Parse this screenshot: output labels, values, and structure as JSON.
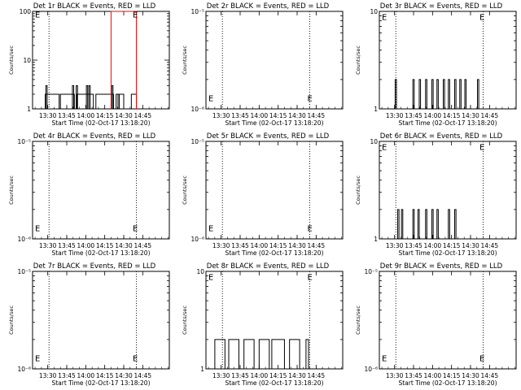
{
  "chart_data": [
    {
      "type": "line",
      "title": "Det 1r BLACK = Events, RED = LLD",
      "xlabel": "Start Time (02-Oct-17 13:18:20)",
      "ylabel": "Counts/sec",
      "yscale": "log",
      "xlim": [
        "13:18",
        "15:06"
      ],
      "ylim": [
        1,
        100
      ],
      "x_ticks": [
        "13:30",
        "13:45",
        "14:00",
        "14:15",
        "14:30",
        "14:45"
      ],
      "y_ticks": [
        "1",
        "10",
        "100"
      ],
      "vlines": [
        "13:31",
        "14:40"
      ],
      "marker": {
        "label": "E",
        "x": "14:39",
        "y": 88
      },
      "series": [
        {
          "name": "Events",
          "color": "#000000",
          "ranges": [
            [
              "13:28",
              "13:39",
              2
            ],
            [
              "13:40",
              "13:51",
              2
            ],
            [
              "13:53",
              "14:06",
              2
            ],
            [
              "14:08",
              "14:22",
              2
            ],
            [
              "14:24",
              "14:30",
              2
            ],
            [
              "14:36",
              "14:40",
              2
            ]
          ],
          "spikes": [
            [
              "13:29",
              3
            ],
            [
              "13:50",
              3
            ],
            [
              "13:53",
              3
            ],
            [
              "14:01",
              3
            ],
            [
              "14:03",
              3
            ],
            [
              "14:21",
              3
            ],
            [
              "14:26",
              2
            ]
          ]
        },
        {
          "name": "LLD",
          "color": "#ff0000",
          "ranges": [
            [
              "14:20",
              "14:40",
              100
            ]
          ],
          "spikes": []
        }
      ]
    },
    {
      "type": "line",
      "title": "Det 2r BLACK = Events, RED = LLD",
      "xlabel": "Start Time (02-Oct-17 13:18:20)",
      "ylabel": "Counts/sec",
      "yscale": "log",
      "xlim": [
        "13:18",
        "15:06"
      ],
      "ylim": [
        1e-06,
        1e-05
      ],
      "x_ticks": [
        "13:30",
        "13:45",
        "14:00",
        "14:15",
        "14:30",
        "14:45"
      ],
      "y_ticks": [
        "10⁻⁶",
        "10⁻⁵"
      ],
      "vlines": [
        "13:31",
        "14:40"
      ],
      "marker": {
        "label": "E",
        "x": "14:40",
        "y": 1.3e-06
      },
      "series": [
        {
          "name": "Events",
          "color": "#000000",
          "ranges": [],
          "spikes": []
        },
        {
          "name": "LLD",
          "color": "#ff0000",
          "ranges": [],
          "spikes": []
        }
      ]
    },
    {
      "type": "line",
      "title": "Det 3r BLACK = Events, RED = LLD",
      "xlabel": "Start Time (02-Oct-17 13:18:20)",
      "ylabel": "Counts/sec",
      "yscale": "log",
      "xlim": [
        "13:18",
        "15:06"
      ],
      "ylim": [
        1,
        10
      ],
      "x_ticks": [
        "13:30",
        "13:45",
        "14:00",
        "14:15",
        "14:30",
        "14:45"
      ],
      "y_ticks": [
        "1",
        "10"
      ],
      "vlines": [
        "13:31",
        "14:40"
      ],
      "marker": {
        "label": "E",
        "x": "14:39",
        "y": 8.8
      },
      "series": [
        {
          "name": "Events",
          "color": "#000000",
          "ranges": [],
          "spikes": [
            [
              "13:31",
              2
            ],
            [
              "13:45",
              2
            ],
            [
              "13:50",
              2
            ],
            [
              "13:55",
              2
            ],
            [
              "14:00",
              2
            ],
            [
              "14:04",
              2
            ],
            [
              "14:09",
              2
            ],
            [
              "14:13",
              2
            ],
            [
              "14:18",
              2
            ],
            [
              "14:22",
              2
            ],
            [
              "14:26",
              2
            ],
            [
              "14:36",
              2
            ]
          ]
        },
        {
          "name": "LLD",
          "color": "#ff0000",
          "ranges": [],
          "spikes": []
        }
      ]
    },
    {
      "type": "line",
      "title": "Det 4r BLACK = Events, RED = LLD",
      "xlabel": "Start Time (02-Oct-17 13:18:20)",
      "ylabel": "Counts/sec",
      "yscale": "log",
      "xlim": [
        "13:18",
        "15:06"
      ],
      "ylim": [
        1e-06,
        1e-05
      ],
      "x_ticks": [
        "13:30",
        "13:45",
        "14:00",
        "14:15",
        "14:30",
        "14:45"
      ],
      "y_ticks": [
        "10⁻⁶",
        "10⁻⁵"
      ],
      "vlines": [
        "13:31",
        "14:40"
      ],
      "marker": {
        "label": "E",
        "x": "14:39",
        "y": 1.3e-06
      },
      "series": [
        {
          "name": "Events",
          "color": "#000000",
          "ranges": [],
          "spikes": []
        },
        {
          "name": "LLD",
          "color": "#ff0000",
          "ranges": [],
          "spikes": []
        }
      ]
    },
    {
      "type": "line",
      "title": "Det 5r BLACK = Events, RED = LLD",
      "xlabel": "Start Time (02-Oct-17 13:18:20)",
      "ylabel": "Counts/sec",
      "yscale": "log",
      "xlim": [
        "13:18",
        "15:06"
      ],
      "ylim": [
        1e-06,
        1e-05
      ],
      "x_ticks": [
        "13:30",
        "13:45",
        "14:00",
        "14:15",
        "14:30",
        "14:45"
      ],
      "y_ticks": [
        "10⁻⁶",
        "10⁻⁵"
      ],
      "vlines": [
        "13:31",
        "14:40"
      ],
      "marker": {
        "label": "E",
        "x": "14:40",
        "y": 1.3e-06
      },
      "series": [
        {
          "name": "Events",
          "color": "#000000",
          "ranges": [],
          "spikes": []
        },
        {
          "name": "LLD",
          "color": "#ff0000",
          "ranges": [],
          "spikes": []
        }
      ]
    },
    {
      "type": "line",
      "title": "Det 6r BLACK = Events, RED = LLD",
      "xlabel": "Start Time (02-Oct-17 13:18:20)",
      "ylabel": "Counts/sec",
      "yscale": "log",
      "xlim": [
        "13:18",
        "15:06"
      ],
      "ylim": [
        1,
        10
      ],
      "x_ticks": [
        "13:30",
        "13:45",
        "14:00",
        "14:15",
        "14:30",
        "14:45"
      ],
      "y_ticks": [
        "1",
        "10"
      ],
      "vlines": [
        "13:31",
        "14:40"
      ],
      "marker": {
        "label": "E",
        "x": "14:39",
        "y": 8.8
      },
      "series": [
        {
          "name": "Events",
          "color": "#000000",
          "ranges": [],
          "spikes": [
            [
              "13:33",
              2
            ],
            [
              "13:36",
              2
            ],
            [
              "13:45",
              2
            ],
            [
              "13:49",
              2
            ],
            [
              "13:55",
              2
            ],
            [
              "14:00",
              2
            ],
            [
              "14:04",
              2
            ],
            [
              "14:13",
              2
            ],
            [
              "14:18",
              2
            ]
          ]
        },
        {
          "name": "LLD",
          "color": "#ff0000",
          "ranges": [],
          "spikes": []
        }
      ]
    },
    {
      "type": "line",
      "title": "Det 7r BLACK = Events, RED = LLD",
      "xlabel": "Start Time (02-Oct-17 13:18:20)",
      "ylabel": "Counts/sec",
      "yscale": "log",
      "xlim": [
        "13:18",
        "15:06"
      ],
      "ylim": [
        1e-06,
        1e-05
      ],
      "x_ticks": [
        "13:30",
        "13:45",
        "14:00",
        "14:15",
        "14:30",
        "14:45"
      ],
      "y_ticks": [
        "10⁻⁶",
        "10⁻⁵"
      ],
      "vlines": [
        "13:31",
        "14:40"
      ],
      "marker": {
        "label": "E",
        "x": "14:39",
        "y": 1.3e-06
      },
      "series": [
        {
          "name": "Events",
          "color": "#000000",
          "ranges": [],
          "spikes": []
        },
        {
          "name": "LLD",
          "color": "#ff0000",
          "ranges": [],
          "spikes": []
        }
      ]
    },
    {
      "type": "line",
      "title": "Det 8r BLACK = Events, RED = LLD",
      "xlabel": "Start Time (02-Oct-17 13:18:20)",
      "ylabel": "Counts/sec",
      "yscale": "log",
      "xlim": [
        "13:18",
        "15:06"
      ],
      "ylim": [
        1,
        10
      ],
      "x_ticks": [
        "13:30",
        "13:45",
        "14:00",
        "14:15",
        "14:30",
        "14:45"
      ],
      "y_ticks": [
        "1",
        "10"
      ],
      "vlines": [
        "13:31",
        "14:40"
      ],
      "marker": {
        "label": "E",
        "x": "14:40",
        "y": 8.8
      },
      "series": [
        {
          "name": "Events",
          "color": "#000000",
          "ranges": [
            [
              "13:25",
              "13:33",
              2
            ],
            [
              "13:36",
              "13:44",
              2
            ],
            [
              "13:48",
              "13:56",
              2
            ],
            [
              "14:00",
              "14:08",
              2
            ],
            [
              "14:10",
              "14:20",
              2
            ],
            [
              "14:24",
              "14:32",
              2
            ],
            [
              "14:37",
              "14:39",
              2
            ]
          ],
          "spikes": []
        },
        {
          "name": "LLD",
          "color": "#ff0000",
          "ranges": [],
          "spikes": []
        }
      ]
    },
    {
      "type": "line",
      "title": "Det 9r BLACK = Events, RED = LLD",
      "xlabel": "Start Time (02-Oct-17 13:18:20)",
      "ylabel": "Counts/sec",
      "yscale": "log",
      "xlim": [
        "13:18",
        "15:06"
      ],
      "ylim": [
        1e-06,
        1e-05
      ],
      "x_ticks": [
        "13:30",
        "13:45",
        "14:00",
        "14:15",
        "14:30",
        "14:45"
      ],
      "y_ticks": [
        "10⁻⁶",
        "10⁻⁵"
      ],
      "vlines": [
        "13:31",
        "14:40"
      ],
      "marker": {
        "label": "E",
        "x": "14:39",
        "y": 1.3e-06
      },
      "series": [
        {
          "name": "Events",
          "color": "#000000",
          "ranges": [],
          "spikes": []
        },
        {
          "name": "LLD",
          "color": "#ff0000",
          "ranges": [],
          "spikes": []
        }
      ]
    }
  ]
}
